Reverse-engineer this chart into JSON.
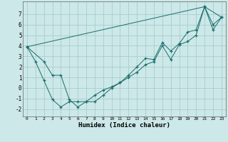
{
  "xlabel": "Humidex (Indice chaleur)",
  "ylabel": "",
  "bg_color": "#cce8e8",
  "grid_color": "#aacccc",
  "line_color": "#1a6b6b",
  "xlim": [
    -0.5,
    23.5
  ],
  "ylim": [
    -2.7,
    8.2
  ],
  "xticks": [
    0,
    1,
    2,
    3,
    4,
    5,
    6,
    7,
    8,
    9,
    10,
    11,
    12,
    13,
    14,
    15,
    16,
    17,
    18,
    19,
    20,
    21,
    22,
    23
  ],
  "yticks": [
    -2,
    -1,
    0,
    1,
    2,
    3,
    4,
    5,
    6,
    7
  ],
  "series": [
    {
      "x": [
        0,
        1,
        2,
        3,
        4,
        5,
        6,
        7,
        8,
        9,
        10,
        11,
        12,
        13,
        14,
        15,
        16,
        17,
        18,
        19,
        20,
        21,
        22,
        23
      ],
      "y": [
        3.9,
        2.5,
        0.7,
        -1.1,
        -1.8,
        -1.3,
        -1.3,
        -1.3,
        -0.7,
        -0.2,
        0.1,
        0.5,
        1.0,
        1.5,
        2.2,
        2.5,
        4.0,
        2.7,
        4.1,
        4.4,
        5.0,
        7.7,
        5.5,
        6.7
      ]
    },
    {
      "x": [
        0,
        2,
        3,
        4,
        5,
        6,
        7,
        8,
        9,
        10,
        11,
        12,
        13,
        14,
        15,
        16,
        17,
        18,
        19,
        20,
        21,
        22,
        23
      ],
      "y": [
        3.9,
        2.5,
        1.2,
        1.2,
        -1.1,
        -1.8,
        -1.3,
        -1.3,
        -0.7,
        0.0,
        0.5,
        1.2,
        2.0,
        2.8,
        2.7,
        4.3,
        3.5,
        4.2,
        5.3,
        5.5,
        7.7,
        6.0,
        6.7
      ]
    },
    {
      "x": [
        0,
        21,
        23
      ],
      "y": [
        3.9,
        7.7,
        6.7
      ]
    }
  ]
}
